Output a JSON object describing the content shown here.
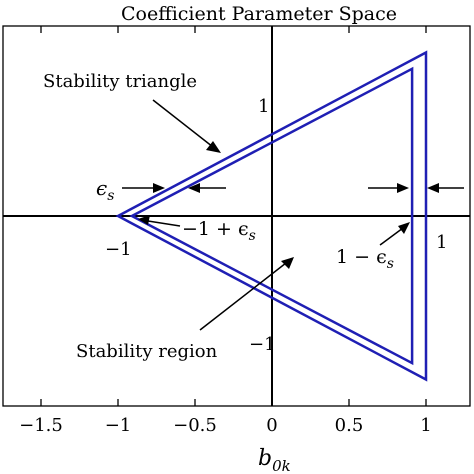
{
  "title": "Coefficient Parameter Space",
  "xlabel": "b_{0k}",
  "xlabel_main": "b",
  "xlabel_sub": "0k",
  "x_ticks": [
    "−1.5",
    "−1",
    "−0.5",
    "0",
    "0.5",
    "1"
  ],
  "x_tick_values": [
    -1.5,
    -1,
    -0.5,
    0,
    0.5,
    1
  ],
  "xlim": [
    -1.75,
    1.1
  ],
  "ylim": [
    -1.55,
    1.6
  ],
  "inline_labels": {
    "y_pos_one": "1",
    "y_neg_one": "−1",
    "x_neg_one": "−1",
    "x_pos_one": "1"
  },
  "annotations": {
    "stability_triangle": "Stability triangle",
    "stability_region": "Stability region",
    "eps_s_sym": "ϵ",
    "eps_s_sub": "s",
    "minus_one_plus_eps": "−1 + ϵ",
    "minus_one_plus_eps_sub": "s",
    "one_minus_eps": "1 − ϵ",
    "one_minus_eps_sub": "s"
  },
  "shapes": {
    "outer_triangle": {
      "vertices": [
        [
          -1,
          0
        ],
        [
          1,
          1.5
        ],
        [
          1,
          -1.5
        ]
      ],
      "meaning": "stability triangle"
    },
    "inner_triangle": {
      "vertices": [
        [
          -0.91,
          0
        ],
        [
          0.91,
          1.35
        ],
        [
          0.91,
          -1.35
        ]
      ],
      "meaning": "stability region"
    },
    "epsilon_s": 0.09
  },
  "colors": {
    "triangle": "#1f1fb4",
    "axes": "#000000",
    "background": "#ffffff"
  }
}
